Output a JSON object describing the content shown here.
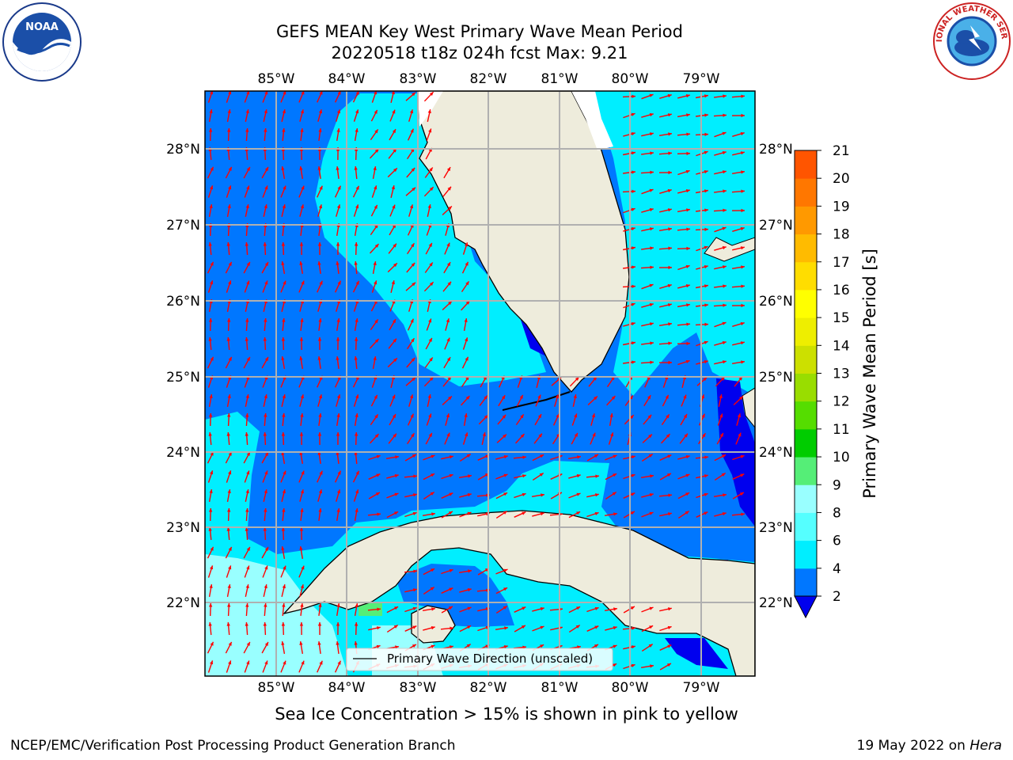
{
  "header": {
    "title_line1": "GEFS MEAN Key West Primary Wave Mean Period",
    "title_line2": "20220518 t18z 024h fcst   Max: 9.21"
  },
  "map": {
    "lon_labels": [
      "85°W",
      "84°W",
      "83°W",
      "82°W",
      "81°W",
      "80°W",
      "79°W"
    ],
    "lat_labels": [
      "28°N",
      "27°N",
      "26°N",
      "25°N",
      "24°N",
      "23°N",
      "22°N"
    ],
    "legend_text": "Primary Wave Direction (unscaled)",
    "arrow_color": "#ff0000",
    "land_color": "#eeecdc"
  },
  "colorbar": {
    "label": "Primary Wave Mean Period [s]",
    "ticks": [
      "21",
      "20",
      "19",
      "18",
      "17",
      "16",
      "15",
      "14",
      "13",
      "12",
      "11",
      "10",
      "9",
      "8",
      "6",
      "4",
      "2"
    ],
    "colors": [
      "#0000ee",
      "#0077ff",
      "#00eeff",
      "#55ffff",
      "#99ffff",
      "#55ee77",
      "#00cc00",
      "#55dd00",
      "#99dd00",
      "#cce000",
      "#eeee00",
      "#ffff00",
      "#ffdd00",
      "#ffbb00",
      "#ff9900",
      "#ff7700",
      "#ff5500",
      "#ff3300",
      "#ff0000"
    ]
  },
  "notes": {
    "sea_ice": "Sea Ice Concentration > 15% is shown in pink to yellow"
  },
  "footer": {
    "left": "NCEP/EMC/Verification Post Processing Product Generation Branch",
    "right_prefix": "19 May 2022 on ",
    "right_host": "Hera"
  },
  "logos": {
    "noaa": "NOAA",
    "nws": "NATIONAL WEATHER SERVICE"
  }
}
